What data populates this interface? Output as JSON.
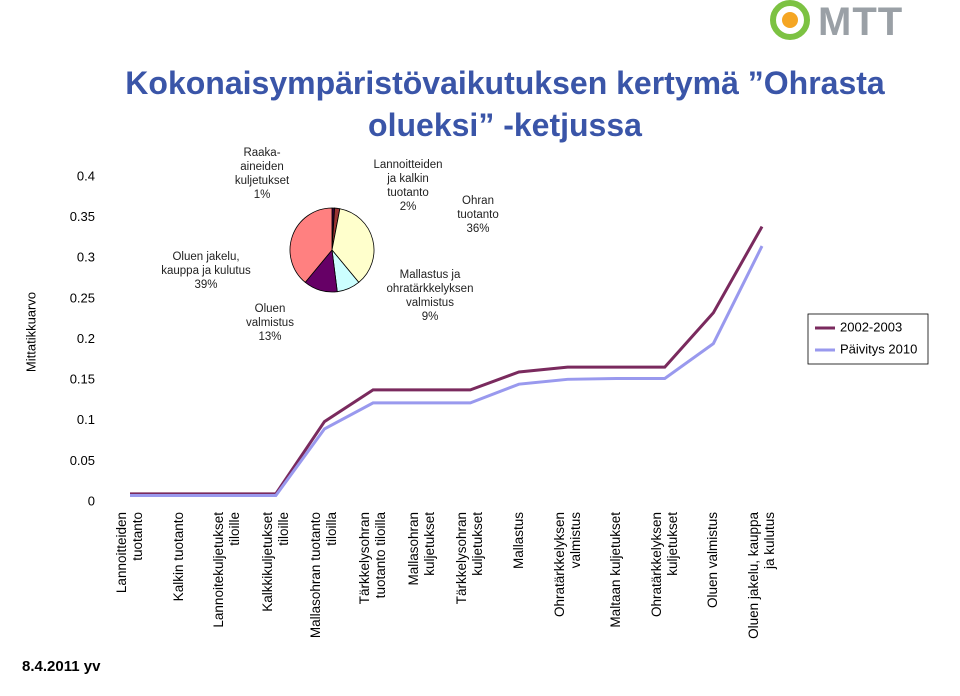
{
  "logo": "MTT",
  "date": "8.4.2011 yv",
  "chart_data": [
    {
      "type": "line",
      "title": "Kokonaisympäristövaikutuksen kertymä ”Ohrasta olueksi” -ketjussa",
      "y_label": "Mittatikkuarvo",
      "categories": [
        "Lannoitteiden tuotanto",
        "Kalkin tuotanto",
        "Lannoitekuljetukset tiloille",
        "Kalkkikuljetukset tiloille",
        "Mallasohran tuotanto tiloilla",
        "Tärkkelysohran tuotanto tiloilla",
        "Mallasohran kuljetukset",
        "Tärkkelysohran kuljetukset",
        "Mallastus",
        "Ohratärkkelyksen valmistus",
        "Maltaan kuljetukset",
        "Ohratärkkelyksen kuljetukset",
        "Oluen valmistus",
        "Oluen jakelu, kauppa ja kulutus"
      ],
      "series": [
        {
          "name": "2002-2003",
          "color": "#7a2a5e",
          "values": [
            0.01,
            0.01,
            0.01,
            0.01,
            0.099,
            0.138,
            0.138,
            0.138,
            0.16,
            0.166,
            0.166,
            0.166,
            0.233,
            0.339
          ]
        },
        {
          "name": "Päivitys 2010",
          "color": "#9999ee",
          "values": [
            0.008,
            0.008,
            0.008,
            0.008,
            0.09,
            0.122,
            0.122,
            0.122,
            0.145,
            0.151,
            0.152,
            0.152,
            0.195,
            0.315
          ]
        }
      ],
      "ylim": [
        0,
        0.4
      ],
      "yticks": [
        0,
        0.05,
        0.1,
        0.15,
        0.2,
        0.25,
        0.3,
        0.35,
        0.4
      ],
      "grid": false,
      "legend": "right"
    },
    {
      "type": "pie",
      "labels": [
        "Raaka-aineiden kuljetukset",
        "Lannoitteiden ja kalkin tuotanto",
        "Ohran tuotanto",
        "Mallastus ja ohratärkkelyksen valmistus",
        "Oluen valmistus",
        "Oluen jakelu, kauppa ja kulutus"
      ],
      "values": [
        1,
        2,
        36,
        9,
        13,
        39
      ],
      "value_labels": [
        "1%",
        "2%",
        "36%",
        "9%",
        "13%",
        "39%"
      ],
      "colors": [
        "#330033",
        "#993333",
        "#ffffcc",
        "#ccffff",
        "#660066",
        "#ff8080"
      ]
    }
  ]
}
